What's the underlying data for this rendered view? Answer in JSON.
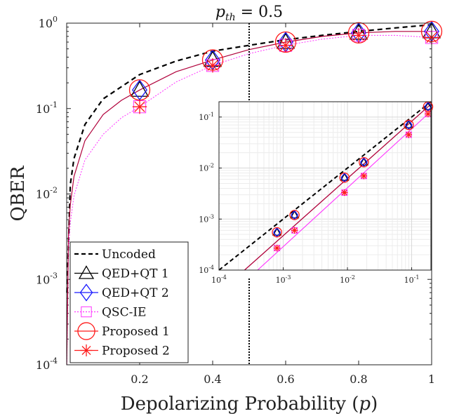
{
  "colors": {
    "uncoded": "#000000",
    "qedqt1": "#000000",
    "qedqt2": "#1a1aff",
    "qscie": "#ff33ff",
    "proposed1": "#ff1a1a",
    "proposed2": "#ff1a1a",
    "solid_curve": "#b0003a",
    "qscie_curve": "#ff33ff",
    "threshold_line": "#000000"
  },
  "chart_data": [
    {
      "panel": "main",
      "type": "line",
      "title_base": "p",
      "title_sub": "th",
      "title_rest": " = 0.5",
      "xlabel": "Depolarizing Probability (",
      "xlabel_var": "p",
      "xlabel_end": ")",
      "ylabel": "QBER",
      "xlim": [
        0,
        1
      ],
      "ylim_log10": [
        -4,
        0
      ],
      "yscale": "log",
      "x_ticks": [
        "0.2",
        "0.4",
        "0.6",
        "0.8",
        "1"
      ],
      "x_tick_values": [
        0.2,
        0.4,
        0.6,
        0.8,
        1.0
      ],
      "y_tick_labels": [
        {
          "base": "10",
          "exp": "-4"
        },
        {
          "base": "10",
          "exp": "-3"
        },
        {
          "base": "10",
          "exp": "-2"
        },
        {
          "base": "10",
          "exp": "-1"
        },
        {
          "base": "10",
          "exp": "0"
        }
      ],
      "grid": false,
      "threshold_x": 0.5,
      "legend_position": "bottom-left",
      "legend": [
        {
          "label": "Uncoded",
          "marker": "none",
          "line": "dashed",
          "color_key": "uncoded"
        },
        {
          "label": "QED+QT 1",
          "marker": "triangle",
          "line": "solid",
          "color_key": "qedqt1"
        },
        {
          "label": "QED+QT 2",
          "marker": "diamond",
          "line": "solid",
          "color_key": "qedqt2"
        },
        {
          "label": "QSC-IE",
          "marker": "square",
          "line": "dotted",
          "color_key": "qscie"
        },
        {
          "label": "Proposed 1",
          "marker": "circle",
          "line": "solid",
          "color_key": "proposed1"
        },
        {
          "label": "Proposed 2",
          "marker": "asterisk",
          "line": "solid",
          "color_key": "proposed2"
        }
      ],
      "series": [
        {
          "name": "Uncoded",
          "x": [
            0.0005,
            0.01,
            0.02,
            0.05,
            0.1,
            0.2,
            0.3,
            0.4,
            0.5,
            0.6,
            0.7,
            0.8,
            0.9,
            1.0
          ],
          "y": [
            0.0007,
            0.013,
            0.026,
            0.065,
            0.13,
            0.25,
            0.36,
            0.47,
            0.55,
            0.64,
            0.72,
            0.8,
            0.88,
            0.96
          ]
        },
        {
          "name": "QED+QT 1",
          "x": [
            0.2,
            0.4,
            0.6,
            0.8,
            1.0
          ],
          "y": [
            0.165,
            0.37,
            0.6,
            0.77,
            0.8
          ]
        },
        {
          "name": "QED+QT 2",
          "x": [
            0.2,
            0.4,
            0.6,
            0.8,
            1.0
          ],
          "y": [
            0.165,
            0.37,
            0.6,
            0.77,
            0.8
          ]
        },
        {
          "name": "QSC-IE",
          "x": [
            0.2,
            0.4,
            0.6,
            0.8,
            1.0
          ],
          "y": [
            0.105,
            0.32,
            0.55,
            0.72,
            0.68
          ]
        },
        {
          "name": "Proposed 1",
          "x": [
            0.2,
            0.4,
            0.6,
            0.8,
            1.0
          ],
          "y": [
            0.165,
            0.37,
            0.6,
            0.77,
            0.8
          ]
        },
        {
          "name": "Proposed 2",
          "x": [
            0.2,
            0.4,
            0.6,
            0.8,
            1.0
          ],
          "y": [
            0.105,
            0.32,
            0.55,
            0.72,
            0.68
          ]
        }
      ],
      "curves": {
        "solid_x": [
          0.0002,
          0.005,
          0.01,
          0.02,
          0.05,
          0.1,
          0.15,
          0.2,
          0.3,
          0.4,
          0.5,
          0.6,
          0.7,
          0.8,
          0.9,
          1.0
        ],
        "solid_y": [
          0.0001,
          0.0035,
          0.0075,
          0.016,
          0.042,
          0.085,
          0.125,
          0.165,
          0.27,
          0.37,
          0.49,
          0.6,
          0.7,
          0.77,
          0.8,
          0.8
        ],
        "dotted_x": [
          0.0003,
          0.005,
          0.01,
          0.02,
          0.05,
          0.1,
          0.15,
          0.2,
          0.3,
          0.4,
          0.5,
          0.6,
          0.7,
          0.8,
          0.9,
          1.0
        ],
        "dotted_y": [
          0.0001,
          0.0022,
          0.0046,
          0.0095,
          0.025,
          0.05,
          0.078,
          0.105,
          0.205,
          0.32,
          0.44,
          0.55,
          0.65,
          0.72,
          0.72,
          0.68
        ]
      }
    },
    {
      "panel": "inset",
      "type": "line",
      "xscale": "log",
      "yscale": "log",
      "xlim_log10": [
        -4,
        -0.7
      ],
      "ylim_log10": [
        -4,
        -0.7
      ],
      "grid": true,
      "x_tick_labels": [
        {
          "base": "10",
          "exp": "-4"
        },
        {
          "base": "10",
          "exp": "-3"
        },
        {
          "base": "10",
          "exp": "-2"
        },
        {
          "base": "10",
          "exp": "-1"
        }
      ],
      "y_tick_labels": [
        {
          "base": "10",
          "exp": "-4"
        },
        {
          "base": "10",
          "exp": "-3"
        },
        {
          "base": "10",
          "exp": "-2"
        },
        {
          "base": "10",
          "exp": "-1"
        }
      ],
      "series": [
        {
          "name": "Uncoded",
          "x": [
            0.0001,
            0.2
          ],
          "y": [
            0.0001,
            0.2
          ]
        },
        {
          "name": "QED+QT 1",
          "x": [
            0.0008,
            0.0015,
            0.009,
            0.018,
            0.09,
            0.18
          ],
          "y": [
            0.00055,
            0.0012,
            0.0065,
            0.013,
            0.07,
            0.16
          ]
        },
        {
          "name": "QED+QT 2",
          "x": [
            0.0008,
            0.0015,
            0.009,
            0.018,
            0.09,
            0.18
          ],
          "y": [
            0.00055,
            0.0012,
            0.0065,
            0.013,
            0.07,
            0.16
          ]
        },
        {
          "name": "QSC-IE",
          "x": [
            0.0008,
            0.0015,
            0.009,
            0.018,
            0.09,
            0.18
          ],
          "y": [
            0.00027,
            0.0006,
            0.0033,
            0.007,
            0.045,
            0.115
          ]
        },
        {
          "name": "Proposed 1",
          "x": [
            0.0008,
            0.0015,
            0.009,
            0.018,
            0.09,
            0.18
          ],
          "y": [
            0.00055,
            0.0012,
            0.0065,
            0.013,
            0.07,
            0.16
          ]
        },
        {
          "name": "Proposed 2",
          "x": [
            0.0008,
            0.0015,
            0.009,
            0.018,
            0.09,
            0.18
          ],
          "y": [
            0.00027,
            0.0006,
            0.0033,
            0.007,
            0.045,
            0.115
          ]
        }
      ],
      "curves": {
        "solid_x": [
          0.00025,
          0.2
        ],
        "solid_y": [
          0.0001,
          0.18
        ],
        "dotted_x": [
          0.0004,
          0.2
        ],
        "dotted_y": [
          0.0001,
          0.13
        ]
      }
    }
  ]
}
